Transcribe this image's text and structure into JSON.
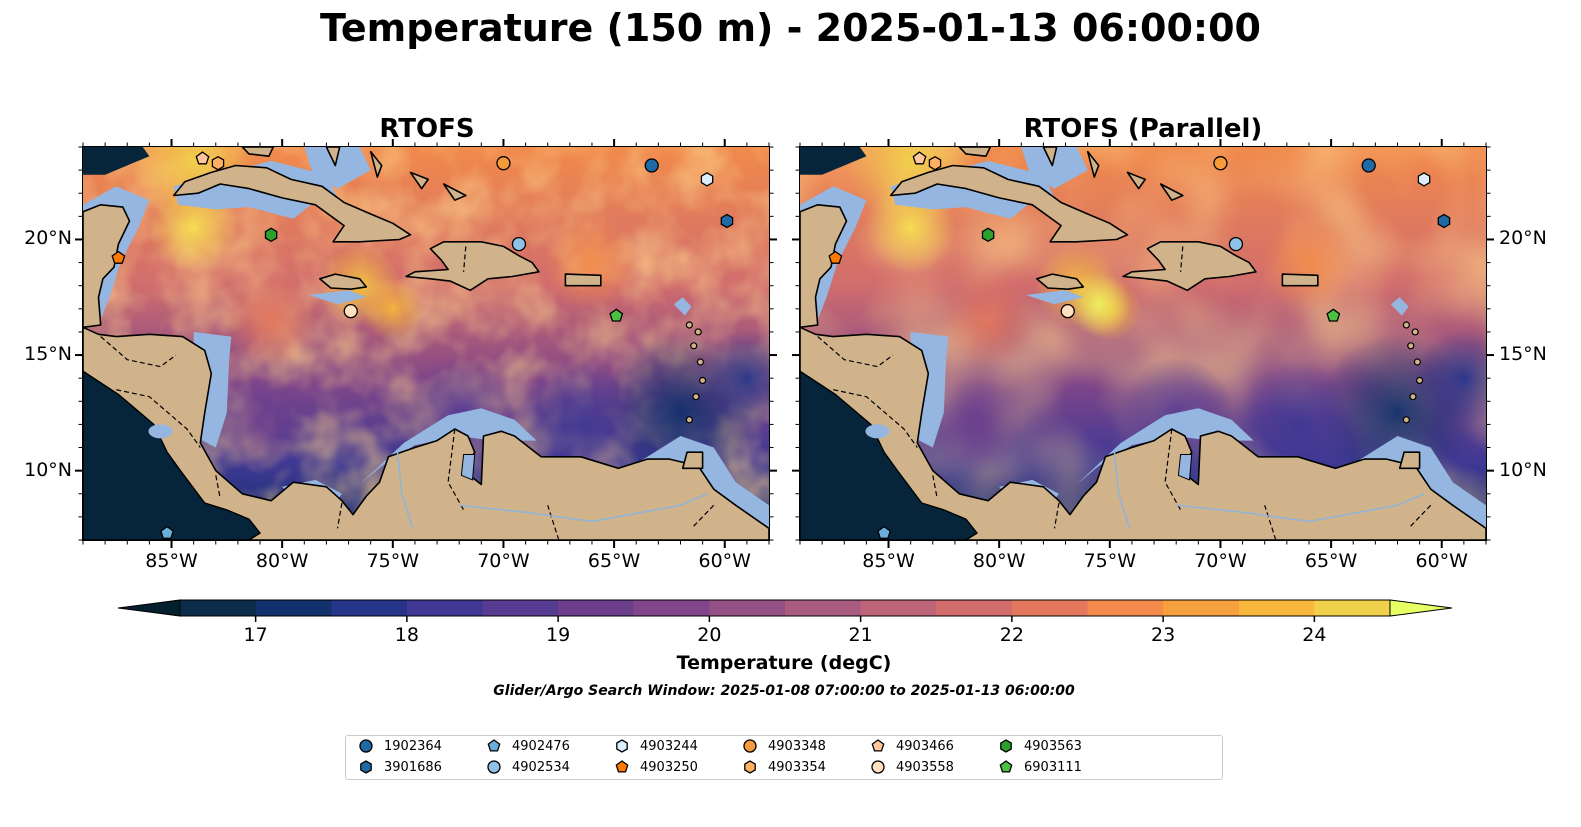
{
  "title": "Temperature (150 m) - 2025-01-13 06:00:00",
  "panels": [
    {
      "title": "RTOFS"
    },
    {
      "title": "RTOFS (Parallel)"
    }
  ],
  "map_extent": {
    "lon": [
      -89,
      -58
    ],
    "lat": [
      7,
      24
    ]
  },
  "lon_ticks": [
    {
      "value": -85,
      "label": "85°W"
    },
    {
      "value": -80,
      "label": "80°W"
    },
    {
      "value": -75,
      "label": "75°W"
    },
    {
      "value": -70,
      "label": "70°W"
    },
    {
      "value": -65,
      "label": "65°W"
    },
    {
      "value": -60,
      "label": "60°W"
    }
  ],
  "lat_ticks": [
    {
      "value": 10,
      "label": "10°N"
    },
    {
      "value": 15,
      "label": "15°N"
    },
    {
      "value": 20,
      "label": "20°N"
    }
  ],
  "colors": {
    "ocean_deep": "#06253a",
    "land": "#d0b38b",
    "shelf": "#95b6e0",
    "coast": "#000000"
  },
  "colorbar": {
    "label": "Temperature (degC)",
    "min": 16.75,
    "max": 24.75,
    "ticks": [
      17,
      18,
      19,
      20,
      21,
      22,
      23,
      24
    ],
    "colors": [
      "#082538",
      "#0a2b4a",
      "#11306c",
      "#26348a",
      "#3f3894",
      "#573b93",
      "#6c3f8d",
      "#804689",
      "#955086",
      "#aa5b80",
      "#be6478",
      "#d16d6d",
      "#e3785d",
      "#f18a4b",
      "#f69f3d",
      "#f7b73a",
      "#f1d14b"
    ],
    "extend_low_color": "#04202e",
    "extend_high_color": "#e8ff66"
  },
  "search_window": "Glider/Argo Search Window: 2025-01-08 07:00:00 to 2025-01-13 06:00:00",
  "floats": [
    {
      "id": "1902364",
      "shape": "circle",
      "color": "#1f6aa5",
      "lon": -63.3,
      "lat": 23.2
    },
    {
      "id": "3901686",
      "shape": "hexagon",
      "color": "#1f6aa5",
      "lon": -59.9,
      "lat": 20.8
    },
    {
      "id": "4902476",
      "shape": "pentagon",
      "color": "#6aaedc",
      "lon": -85.2,
      "lat": 7.3
    },
    {
      "id": "4902534",
      "shape": "circle",
      "color": "#8fc2e8",
      "lon": -69.3,
      "lat": 19.8
    },
    {
      "id": "4903244",
      "shape": "hexagon",
      "color": "#dceefc",
      "lon": -60.8,
      "lat": 22.6
    },
    {
      "id": "4903250",
      "shape": "pentagon",
      "color": "#ff7a00",
      "lon": -87.4,
      "lat": 19.2
    },
    {
      "id": "4903348",
      "shape": "circle",
      "color": "#f69a3a",
      "lon": -70.0,
      "lat": 23.3
    },
    {
      "id": "4903354",
      "shape": "hexagon",
      "color": "#ffb060",
      "lon": -82.9,
      "lat": 23.3
    },
    {
      "id": "4903466",
      "shape": "pentagon",
      "color": "#ffc79a",
      "lon": -83.6,
      "lat": 23.5
    },
    {
      "id": "4903558",
      "shape": "circle",
      "color": "#ffe0c0",
      "lon": -76.9,
      "lat": 16.9
    },
    {
      "id": "4903563",
      "shape": "hexagon",
      "color": "#2ca02c",
      "lon": -80.5,
      "lat": 20.2
    },
    {
      "id": "6903111",
      "shape": "pentagon",
      "color": "#4cc040",
      "lon": -64.9,
      "lat": 16.7
    }
  ]
}
